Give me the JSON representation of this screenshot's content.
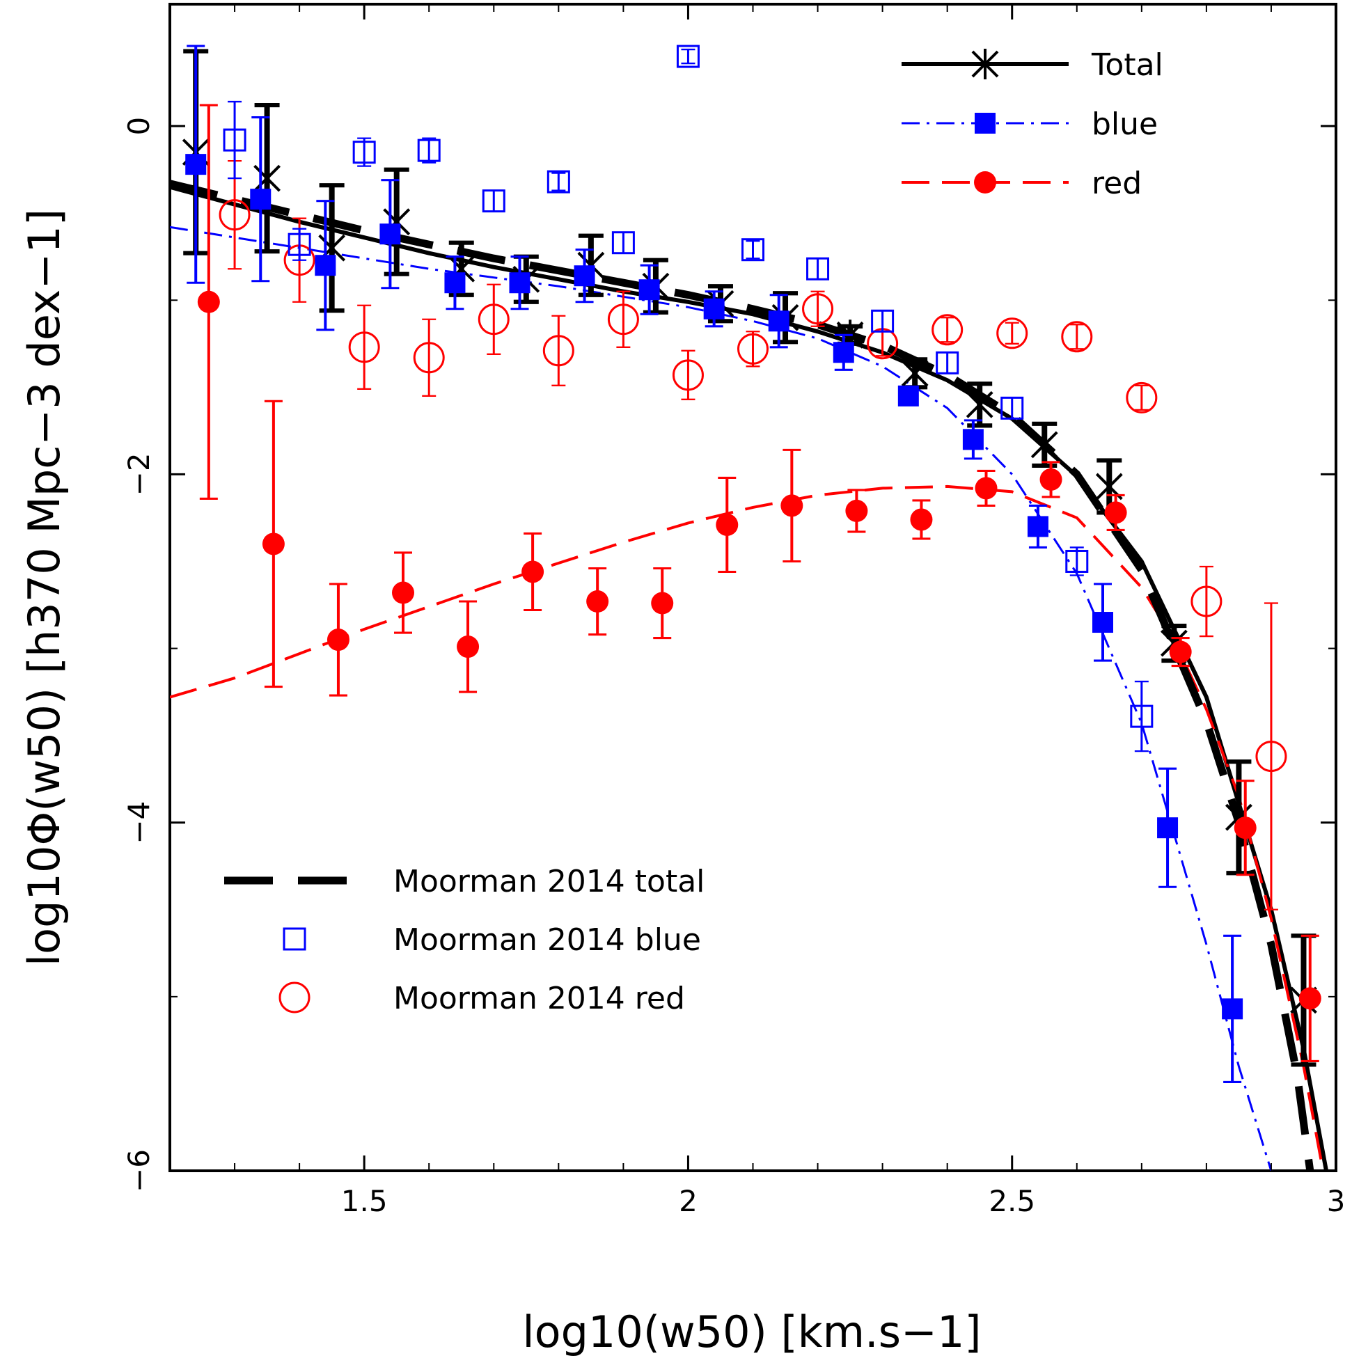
{
  "chart_data": {
    "type": "scatter",
    "title": "",
    "xlabel": "log10(w50) [km.s−1]",
    "ylabel": "log10Φ(w50) [h370 Mpc−3 dex−1]",
    "xlim": [
      1.2,
      3.0
    ],
    "ylim": [
      -6.0,
      0.7
    ],
    "x_ticks": [
      1.5,
      2.0,
      2.5,
      3.0
    ],
    "x_tick_labels": [
      "1.5",
      "2",
      "2.5",
      "3"
    ],
    "y_ticks": [
      0,
      -2,
      -4,
      -6
    ],
    "y_tick_labels": [
      "0",
      "−2",
      "−4",
      "−6"
    ],
    "colors": {
      "total": "#000000",
      "blue": "#0000ff",
      "red": "#ff0000"
    },
    "legend_top": [
      {
        "label": "Total",
        "series": "total"
      },
      {
        "label": "blue",
        "series": "blue"
      },
      {
        "label": "red",
        "series": "red"
      }
    ],
    "legend_bottom": [
      {
        "label": "Moorman 2014 total",
        "series": "moorman_total"
      },
      {
        "label": "Moorman 2014 blue",
        "series": "moorman_blue"
      },
      {
        "label": "Moorman 2014 red",
        "series": "moorman_red"
      }
    ],
    "series": [
      {
        "name": "Total",
        "key": "total",
        "marker": "asterisk",
        "x": [
          1.24,
          1.35,
          1.45,
          1.55,
          1.65,
          1.75,
          1.85,
          1.95,
          2.05,
          2.15,
          2.25,
          2.35,
          2.45,
          2.55,
          2.65,
          2.75,
          2.85,
          2.95
        ],
        "y": [
          -0.15,
          -0.3,
          -0.7,
          -0.55,
          -0.82,
          -0.88,
          -0.8,
          -0.92,
          -1.02,
          -1.1,
          -1.2,
          -1.42,
          -1.6,
          -1.83,
          -2.07,
          -2.97,
          -3.97,
          -5.02
        ],
        "yerr": [
          0.58,
          0.42,
          0.36,
          0.3,
          0.15,
          0.13,
          0.17,
          0.15,
          0.1,
          0.14,
          0.05,
          0.08,
          0.12,
          0.12,
          0.15,
          0.1,
          0.32,
          0.37
        ]
      },
      {
        "name": "blue",
        "key": "blue",
        "marker": "filled-square",
        "x": [
          1.24,
          1.34,
          1.44,
          1.54,
          1.64,
          1.74,
          1.84,
          1.94,
          2.04,
          2.14,
          2.24,
          2.34,
          2.44,
          2.54,
          2.64,
          2.74,
          2.84
        ],
        "y": [
          -0.22,
          -0.42,
          -0.8,
          -0.62,
          -0.9,
          -0.9,
          -0.86,
          -0.94,
          -1.05,
          -1.12,
          -1.3,
          -1.55,
          -1.8,
          -2.3,
          -2.85,
          -4.03,
          -5.07
        ],
        "yerr": [
          0.68,
          0.47,
          0.37,
          0.31,
          0.15,
          0.15,
          0.15,
          0.14,
          0.1,
          0.15,
          0.1,
          0.05,
          0.11,
          0.12,
          0.22,
          0.34,
          0.42
        ]
      },
      {
        "name": "red",
        "key": "red",
        "marker": "filled-circle",
        "x": [
          1.26,
          1.36,
          1.46,
          1.56,
          1.66,
          1.76,
          1.86,
          1.96,
          2.06,
          2.16,
          2.26,
          2.36,
          2.46,
          2.56,
          2.66,
          2.76,
          2.86,
          2.96
        ],
        "y": [
          -1.01,
          -2.4,
          -2.95,
          -2.68,
          -2.99,
          -2.56,
          -2.73,
          -2.74,
          -2.29,
          -2.18,
          -2.21,
          -2.26,
          -2.08,
          -2.03,
          -2.22,
          -3.02,
          -4.03,
          -5.01
        ],
        "yerr": [
          1.13,
          0.82,
          0.32,
          0.23,
          0.26,
          0.22,
          0.19,
          0.2,
          0.27,
          0.32,
          0.12,
          0.11,
          0.1,
          0.1,
          0.1,
          0.08,
          0.27,
          0.36
        ]
      },
      {
        "name": "Moorman 2014 blue",
        "key": "moorman_blue",
        "marker": "open-square",
        "x": [
          1.3,
          1.4,
          1.5,
          1.6,
          1.7,
          1.8,
          1.9,
          2.0,
          2.1,
          2.2,
          2.3,
          2.4,
          2.5,
          2.6,
          2.7
        ],
        "y": [
          -0.08,
          -0.68,
          -0.15,
          -0.14,
          -0.43,
          -0.32,
          -0.67,
          0.4,
          -0.71,
          -0.82,
          -1.12,
          -1.36,
          -1.62,
          -2.5,
          -3.39
        ],
        "yerr": [
          0.22,
          0.09,
          0.08,
          0.07,
          0.06,
          0.05,
          0.06,
          0.04,
          0.05,
          0.06,
          0.06,
          0.06,
          0.06,
          0.08,
          0.2
        ]
      },
      {
        "name": "Moorman 2014 red",
        "key": "moorman_red",
        "marker": "open-circle",
        "x": [
          1.3,
          1.4,
          1.5,
          1.6,
          1.7,
          1.8,
          1.9,
          2.0,
          2.1,
          2.2,
          2.3,
          2.4,
          2.5,
          2.6,
          2.7,
          2.8,
          2.9
        ],
        "y": [
          -0.51,
          -0.77,
          -1.27,
          -1.33,
          -1.11,
          -1.29,
          -1.11,
          -1.43,
          -1.28,
          -1.05,
          -1.25,
          -1.17,
          -1.19,
          -1.21,
          -1.56,
          -2.73,
          -3.62
        ],
        "yerr": [
          0.31,
          0.24,
          0.24,
          0.22,
          0.2,
          0.2,
          0.16,
          0.14,
          0.1,
          0.1,
          0.07,
          0.07,
          0.06,
          0.07,
          0.07,
          0.2,
          0.88
        ]
      }
    ],
    "fits": [
      {
        "name": "Total fit",
        "key": "total",
        "style": "solid",
        "x": [
          1.2,
          1.3,
          1.4,
          1.5,
          1.6,
          1.7,
          1.8,
          1.9,
          2.0,
          2.1,
          2.2,
          2.3,
          2.4,
          2.5,
          2.6,
          2.7,
          2.8,
          2.9,
          2.95,
          2.99
        ],
        "y": [
          -0.35,
          -0.45,
          -0.55,
          -0.64,
          -0.73,
          -0.81,
          -0.88,
          -0.95,
          -1.01,
          -1.08,
          -1.18,
          -1.3,
          -1.46,
          -1.68,
          -2.01,
          -2.5,
          -3.28,
          -4.5,
          -5.3,
          -6.1
        ]
      },
      {
        "name": "blue fit",
        "key": "blue",
        "style": "dashdot",
        "x": [
          1.2,
          1.3,
          1.4,
          1.5,
          1.6,
          1.7,
          1.8,
          1.9,
          2.0,
          2.1,
          2.2,
          2.3,
          2.4,
          2.5,
          2.6,
          2.7,
          2.8,
          2.85,
          2.9
        ],
        "y": [
          -0.58,
          -0.64,
          -0.7,
          -0.76,
          -0.82,
          -0.87,
          -0.92,
          -0.98,
          -1.04,
          -1.12,
          -1.22,
          -1.38,
          -1.62,
          -2.0,
          -2.57,
          -3.43,
          -4.7,
          -5.4,
          -6.0
        ]
      },
      {
        "name": "red fit",
        "key": "red",
        "style": "dashed",
        "x": [
          1.2,
          1.3,
          1.4,
          1.5,
          1.6,
          1.7,
          1.8,
          1.9,
          2.0,
          2.1,
          2.2,
          2.3,
          2.4,
          2.5,
          2.6,
          2.7,
          2.75,
          2.8,
          2.85,
          2.9,
          2.95,
          2.98
        ],
        "y": [
          -3.28,
          -3.17,
          -3.03,
          -2.89,
          -2.76,
          -2.63,
          -2.51,
          -2.39,
          -2.28,
          -2.19,
          -2.12,
          -2.08,
          -2.07,
          -2.1,
          -2.25,
          -2.65,
          -2.95,
          -3.35,
          -3.85,
          -4.55,
          -5.4,
          -6.0
        ]
      },
      {
        "name": "Moorman 2014 total",
        "key": "total",
        "style": "longdash",
        "x": [
          1.2,
          1.3,
          1.4,
          1.5,
          1.6,
          1.7,
          1.8,
          1.9,
          2.0,
          2.1,
          2.2,
          2.3,
          2.4,
          2.5,
          2.6,
          2.7,
          2.8,
          2.85,
          2.9,
          2.94,
          2.96
        ],
        "y": [
          -0.33,
          -0.42,
          -0.51,
          -0.6,
          -0.68,
          -0.76,
          -0.83,
          -0.9,
          -0.97,
          -1.05,
          -1.14,
          -1.26,
          -1.43,
          -1.66,
          -2.0,
          -2.55,
          -3.42,
          -4.0,
          -4.7,
          -5.45,
          -6.0
        ]
      }
    ]
  }
}
